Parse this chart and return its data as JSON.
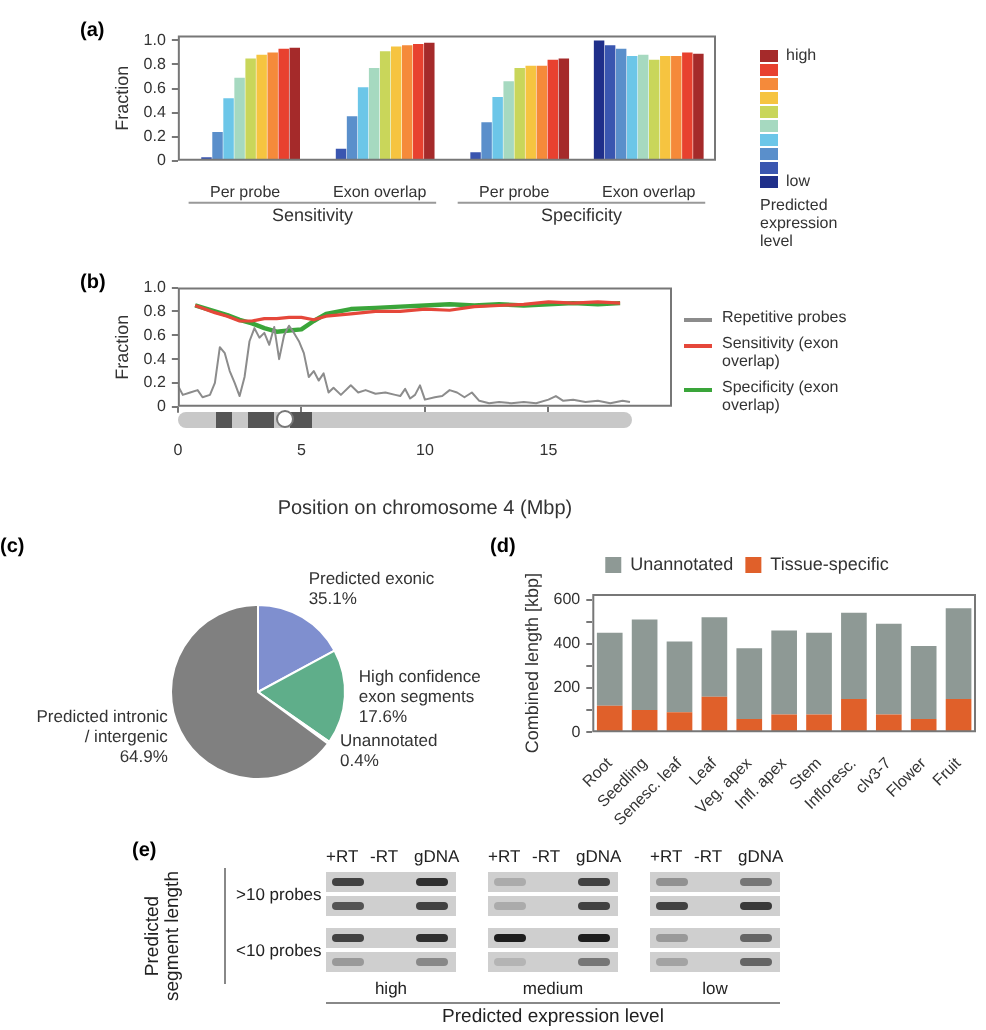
{
  "chart_data": [
    {
      "type": "bar",
      "title": "(a)",
      "ylabel": "Fraction",
      "categories": [
        "Per probe",
        "Exon overlap",
        "Per probe",
        "Exon overlap"
      ],
      "ylim": [
        0,
        1.04
      ],
      "yticks": [
        0,
        0.2,
        0.4,
        0.6,
        0.8,
        {
          "value": 1,
          "label": "1.0"
        }
      ],
      "grid": false,
      "legend": "right",
      "legend_title": "Predicted expression level",
      "annotations": [
        "Sensitivity",
        "Specificity"
      ],
      "series": [
        {
          "name": "low",
          "color": "#1f2f8a",
          "values": [
            0,
            0,
            0,
            1.0
          ]
        },
        {
          "color": "#3a56b0",
          "values": [
            0.03,
            0.1,
            0.07,
            0.96
          ]
        },
        {
          "color": "#5a8fcb",
          "values": [
            0.24,
            0.37,
            0.32,
            0.93
          ]
        },
        {
          "color": "#6cc6e8",
          "values": [
            0.52,
            0.61,
            0.53,
            0.87
          ]
        },
        {
          "color": "#a6d9c0",
          "values": [
            0.69,
            0.77,
            0.66,
            0.88
          ]
        },
        {
          "color": "#c9d65a",
          "values": [
            0.85,
            0.91,
            0.77,
            0.84
          ]
        },
        {
          "color": "#f6c440",
          "values": [
            0.88,
            0.95,
            0.79,
            0.87
          ]
        },
        {
          "color": "#f58a3a",
          "values": [
            0.9,
            0.96,
            0.79,
            0.87
          ]
        },
        {
          "color": "#e8412f",
          "values": [
            0.93,
            0.97,
            0.84,
            0.9
          ]
        },
        {
          "name": "high",
          "color": "#a52a2a",
          "values": [
            0.94,
            0.98,
            0.85,
            0.89
          ]
        }
      ]
    },
    {
      "type": "line",
      "title": "(b)",
      "ylabel": "Fraction",
      "xlabel": "Position on chromosome 4 (Mbp)",
      "xlim": [
        0,
        20
      ],
      "xticks": [
        0,
        5,
        10,
        15
      ],
      "ylim": [
        0,
        1
      ],
      "yticks": [
        0,
        0.2,
        0.4,
        0.6,
        0.8,
        {
          "value": 1,
          "label": "1.0"
        }
      ],
      "grid": false,
      "legend": "right",
      "series": [
        {
          "name": "Repetitive probes",
          "color": "#8c8c8c",
          "x": [
            0,
            0.2,
            0.5,
            0.8,
            1.0,
            1.3,
            1.5,
            1.7,
            1.9,
            2.1,
            2.3,
            2.5,
            2.7,
            2.9,
            3.1,
            3.3,
            3.5,
            3.7,
            3.9,
            4.1,
            4.3,
            4.5,
            4.7,
            4.9,
            5.1,
            5.3,
            5.5,
            5.7,
            5.9,
            6.1,
            6.3,
            6.6,
            7.0,
            7.3,
            7.6,
            8.0,
            8.4,
            8.8,
            9.0,
            9.2,
            9.4,
            9.6,
            9.8,
            10.0,
            10.4,
            10.7,
            11.0,
            11.3,
            11.6,
            11.9,
            12.2,
            12.6,
            13.0,
            13.5,
            14.0,
            14.5,
            15.0,
            15.3,
            15.6,
            16.0,
            16.5,
            17.0,
            17.5,
            18.0,
            18.3
          ],
          "values": [
            0.18,
            0.1,
            0.12,
            0.14,
            0.08,
            0.1,
            0.2,
            0.5,
            0.45,
            0.3,
            0.2,
            0.09,
            0.25,
            0.55,
            0.66,
            0.58,
            0.62,
            0.52,
            0.67,
            0.4,
            0.6,
            0.68,
            0.62,
            0.55,
            0.45,
            0.25,
            0.3,
            0.22,
            0.28,
            0.12,
            0.16,
            0.1,
            0.18,
            0.12,
            0.14,
            0.11,
            0.12,
            0.1,
            0.09,
            0.15,
            0.07,
            0.1,
            0.18,
            0.06,
            0.08,
            0.09,
            0.14,
            0.12,
            0.08,
            0.12,
            0.05,
            0.03,
            0.04,
            0.03,
            0.04,
            0.03,
            0.06,
            0.09,
            0.05,
            0.06,
            0.04,
            0.05,
            0.03,
            0.05,
            0.04
          ]
        },
        {
          "name": "Sensitivity (exon overlap)",
          "color": "#e5473a",
          "x": [
            0.7,
            1.5,
            2.0,
            2.5,
            3.0,
            3.5,
            4.0,
            4.5,
            5.0,
            5.5,
            6.0,
            7.0,
            8.0,
            9.0,
            10.0,
            11.0,
            12.0,
            13.0,
            14.0,
            15.0,
            16.0,
            17.0,
            17.9
          ],
          "values": [
            0.85,
            0.79,
            0.76,
            0.72,
            0.72,
            0.74,
            0.74,
            0.75,
            0.75,
            0.73,
            0.76,
            0.78,
            0.8,
            0.8,
            0.82,
            0.81,
            0.84,
            0.85,
            0.86,
            0.88,
            0.87,
            0.88,
            0.87
          ]
        },
        {
          "name": "Specificity (exon overlap)",
          "color": "#3aa53a",
          "x": [
            0.7,
            1.5,
            2.0,
            2.5,
            3.0,
            3.5,
            4.0,
            4.5,
            5.0,
            5.5,
            6.0,
            7.0,
            8.0,
            9.0,
            10.0,
            11.0,
            12.0,
            13.0,
            14.0,
            15.0,
            16.0,
            17.0,
            17.9
          ],
          "values": [
            0.85,
            0.8,
            0.77,
            0.73,
            0.7,
            0.66,
            0.63,
            0.64,
            0.65,
            0.72,
            0.78,
            0.82,
            0.83,
            0.84,
            0.85,
            0.86,
            0.85,
            0.86,
            0.85,
            0.86,
            0.87,
            0.86,
            0.87
          ]
        }
      ]
    },
    {
      "type": "pie",
      "title": "(c)",
      "annotations": [
        "Predicted exonic 35.1%"
      ],
      "categories": [
        null,
        "High confidence exon segments",
        "Unannotated",
        "Predicted intronic / intergenic"
      ],
      "values": [
        17.1,
        17.6,
        0.4,
        64.9
      ],
      "value_labels": [
        null,
        "17.6%",
        "0.4%",
        "64.9%"
      ],
      "colors": [
        "#7f8fcf",
        "#5fae8a",
        "#a8dca0",
        "#808080"
      ]
    },
    {
      "type": "bar",
      "stacked": true,
      "title": "(d)",
      "ylabel": "Combined length [kbp]",
      "categories": [
        "Root",
        "Seedling",
        "Senesc. leaf",
        "Leaf",
        "Veg. apex",
        "Infl. apex",
        "Stem",
        "Infloresc.",
        "clv3-7",
        "Flower",
        "Fruit"
      ],
      "ylim": [
        0,
        625
      ],
      "yticks": [
        0,
        {
          "value": 100,
          "label": null
        },
        200,
        {
          "value": 300,
          "label": null
        },
        400,
        {
          "value": 500,
          "label": null
        },
        600
      ],
      "grid": false,
      "legend": "top",
      "series": [
        {
          "name": "Tissue-specific",
          "color": "#e0602a",
          "values": [
            120,
            100,
            90,
            160,
            60,
            80,
            80,
            150,
            80,
            60,
            150
          ]
        },
        {
          "name": "Unannotated",
          "color": "#8e9995",
          "values": [
            330,
            410,
            320,
            360,
            320,
            380,
            370,
            390,
            410,
            330,
            410
          ]
        }
      ]
    },
    {
      "type": "other",
      "title": "(e)",
      "categories": [
        "high",
        "medium",
        "low"
      ],
      "y_categories": [
        ">10 probes",
        "<10 probes"
      ],
      "ylabel": "Predicted segment length",
      "xlabel": "Predicted expression level",
      "annotations": [
        "+RT",
        "-RT",
        "gDNA",
        "+RT",
        "-RT",
        "gDNA",
        "+RT",
        "-RT",
        "gDNA"
      ]
    }
  ]
}
